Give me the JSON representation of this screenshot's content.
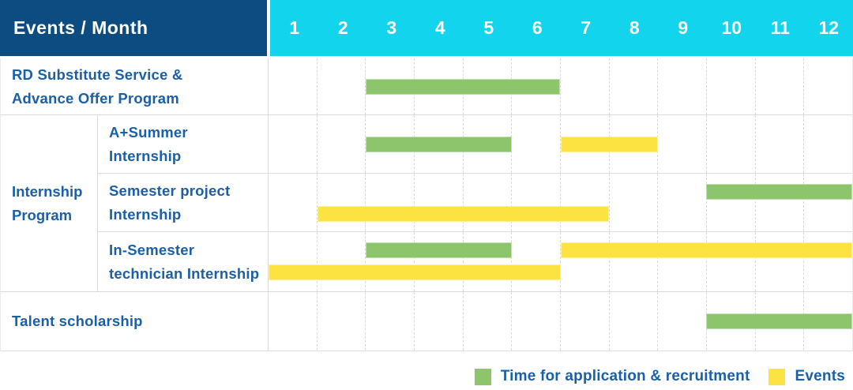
{
  "header": {
    "label": "Events / Month",
    "months": [
      "1",
      "2",
      "3",
      "4",
      "5",
      "6",
      "7",
      "8",
      "9",
      "10",
      "11",
      "12"
    ]
  },
  "colors": {
    "header_bg": "#0d4c80",
    "months_bg": "#12d4ec",
    "green": "#8cc56c",
    "yellow": "#fde342",
    "text_blue": "#1b5fa6"
  },
  "rows": [
    {
      "label": "RD Substitute Service &\nAdvance Offer Program",
      "bars": [
        {
          "color": "green",
          "start": 3,
          "end": 6,
          "track": "center"
        }
      ]
    },
    {
      "label": "Talent scholarship",
      "bars": [
        {
          "color": "green",
          "start": 10,
          "end": 12,
          "track": "center"
        }
      ]
    }
  ],
  "group": {
    "label": "Internship\nProgram",
    "rows": [
      {
        "label": "A+Summer\nInternship",
        "bars": [
          {
            "color": "green",
            "start": 3,
            "end": 5,
            "track": "center"
          },
          {
            "color": "yellow",
            "start": 7,
            "end": 8,
            "track": "center"
          }
        ]
      },
      {
        "label": "Semester project\nInternship",
        "bars": [
          {
            "color": "green",
            "start": 10,
            "end": 12,
            "track": "top"
          },
          {
            "color": "yellow",
            "start": 2,
            "end": 7,
            "track": "bottom"
          }
        ]
      },
      {
        "label": "In-Semester\ntechnician Internship",
        "bars": [
          {
            "color": "green",
            "start": 3,
            "end": 5,
            "track": "top"
          },
          {
            "color": "yellow",
            "start": 7,
            "end": 12,
            "track": "top"
          },
          {
            "color": "yellow",
            "start": 1,
            "end": 6,
            "track": "bottom"
          }
        ]
      }
    ]
  },
  "legend": [
    {
      "color": "green",
      "label": "Time for application & recruitment"
    },
    {
      "color": "yellow",
      "label": "Events"
    }
  ],
  "chart_data": {
    "type": "bar",
    "subtype": "gantt",
    "title": "Events / Month",
    "x": {
      "label": "Month",
      "ticks": [
        1,
        2,
        3,
        4,
        5,
        6,
        7,
        8,
        9,
        10,
        11,
        12
      ],
      "range": [
        1,
        12
      ]
    },
    "grid": "vertical-dashed",
    "legend_position": "bottom-right",
    "series_legend": [
      "Time for application & recruitment",
      "Events"
    ],
    "rows": [
      {
        "event": "RD Substitute Service & Advance Offer Program",
        "group": null,
        "application_recruitment_months": [
          [
            3,
            6
          ]
        ],
        "events_months": []
      },
      {
        "event": "A+Summer Internship",
        "group": "Internship Program",
        "application_recruitment_months": [
          [
            3,
            5
          ]
        ],
        "events_months": [
          [
            7,
            8
          ]
        ]
      },
      {
        "event": "Semester project Internship",
        "group": "Internship Program",
        "application_recruitment_months": [
          [
            10,
            12
          ]
        ],
        "events_months": [
          [
            2,
            7
          ]
        ]
      },
      {
        "event": "In-Semester technician Internship",
        "group": "Internship Program",
        "application_recruitment_months": [
          [
            3,
            5
          ]
        ],
        "events_months": [
          [
            1,
            6
          ],
          [
            7,
            12
          ]
        ]
      },
      {
        "event": "Talent scholarship",
        "group": null,
        "application_recruitment_months": [
          [
            10,
            12
          ]
        ],
        "events_months": []
      }
    ]
  }
}
